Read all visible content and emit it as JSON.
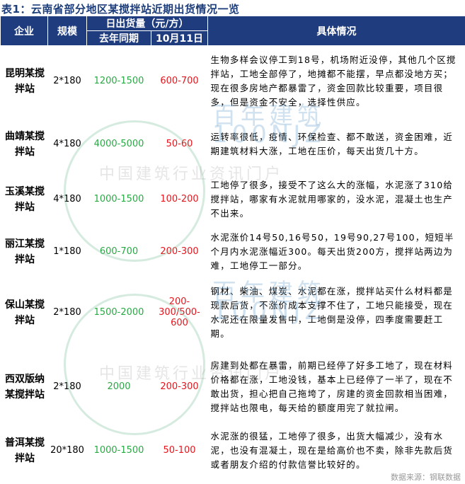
{
  "title": "表1：云南省部分地区某搅拌站近期出货情况一览",
  "headers": {
    "company": "企业",
    "scale": "规模",
    "daily": "日出货量（元/方）",
    "last_year": "去年同期",
    "date": "10月11日",
    "detail": "具体情况"
  },
  "rows": [
    {
      "company": "昆明某搅拌站",
      "scale": "2*180",
      "last_year": "1200-1500",
      "current": "600-700",
      "detail": "生物多样会议停工到18号，机场附近没停，其他几个区搅拌站，工地全部停了，地摊都不能摆，早点都没地方买；现在很多房地产都暴雷了，资金回款比较重要，项目很多，但是资金不安全，选择性供应。"
    },
    {
      "company": "曲靖某搅拌站",
      "scale": "4*180",
      "last_year": "4000-5000",
      "current": "50-60",
      "detail": "运转率很低，疫情、环保检查、都不敢送，资金困难，近期建筑材料大涨，工地在压价，每天出货几十方。"
    },
    {
      "company": "玉溪某搅拌站",
      "scale": "4*180",
      "last_year": "1000-1500",
      "current": "100-200",
      "detail": "工地停了很多，接受不了这么大的涨幅，水泥涨了310给搅拌站，哪家有水泥就用哪家的，没水泥，混凝土也生产不出来。"
    },
    {
      "company": "丽江某搅拌站",
      "scale": "1*180",
      "last_year": "600-700",
      "current": "200-300",
      "detail": "水泥涨价14号50,16号50，19号90,27号100，短短半个月内水泥涨幅近300。每天出货200方，搅拌站两边为难，工地停工一部分。"
    },
    {
      "company": "保山某搅拌站",
      "scale": "2*180",
      "last_year": "1500-2000",
      "current": "200-300/500-600",
      "detail": "钢材、柴油、煤炭、水泥都在涨，搅拌站买什么材料都是现款后货，不涨价成本支撑不住了，工地只能接受，现在水泥还在限量发售中，工地倒是没停，四季度需要赶工期。"
    },
    {
      "company": "西双版纳某搅拌站",
      "scale": "2*180",
      "last_year": "2000",
      "current": "200-300",
      "detail": "房建到处都在暴雷，前期已经停了好多工地了，现在材料价格都在涨，工地没钱，基本上已经停了一半了，现在不敢出货，担心把自己拖垮了，房建的资金回款相当困难，搅拌站也限电，每天给的额度用完了就拉闸。"
    },
    {
      "company": "普洱某搅拌站",
      "scale": "20*180",
      "last_year": "1000-1500",
      "current": "50-100",
      "detail": "水泥涨的很猛，工地停了很多，出货大幅减少，没有水泥，也没有混凝土，现在是给高价也不卖，除非先款后货或者朋友介绍的付款信誉比较好的。"
    }
  ],
  "watermark": {
    "cn": "百年建筑",
    "en": "100NJZ",
    "slogan": "中国建筑行业资讯门户"
  },
  "source": "数据来源：钢联数据",
  "colors": {
    "header": "#1f3c7e",
    "last_year": "#2aa845",
    "current": "#e5161d"
  }
}
